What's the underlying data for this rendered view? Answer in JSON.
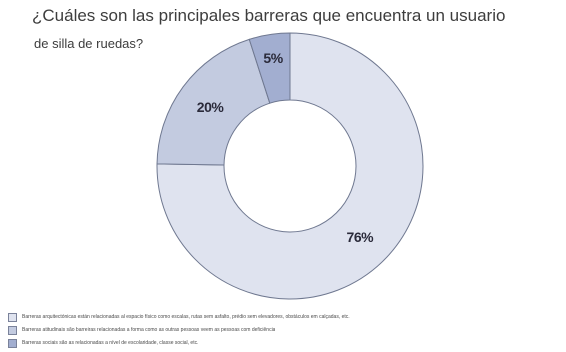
{
  "header": {
    "title_line1": "¿Cuáles son las principales barreras que encuentra un usuario",
    "title_line2": "de silla de ruedas?"
  },
  "chart_data": {
    "type": "pie",
    "style": "donut",
    "title": "¿Cuáles son las principales barreras que encuentra un usuario de silla de ruedas?",
    "slices": [
      {
        "label": "Barreras arquitectónicas están relacionadas al espacio físico como escalas, rutas sem asfalto, prédio sem elevadores, obstáculos em calçadas, etc.",
        "value": 76,
        "display": "76%",
        "color": "#dfe3ef"
      },
      {
        "label": "Barreras atitudinais são barreiras relacionadas a forma como as outras pessoas veem as pessoas com deficiência",
        "value": 20,
        "display": "20%",
        "color": "#c3cbe0"
      },
      {
        "label": "Barreras sociais são as relacionadas a nível de escolaridade, classe social, etc.",
        "value": 5,
        "display": "5%",
        "color": "#a2aed0"
      }
    ],
    "legend_position": "bottom-left"
  }
}
